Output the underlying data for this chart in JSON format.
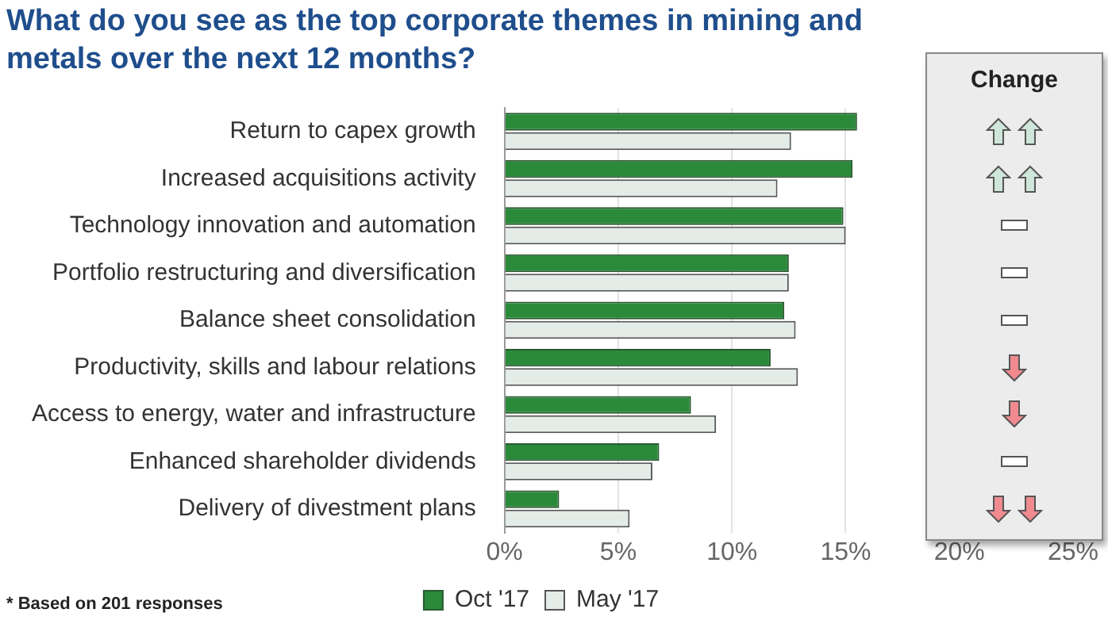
{
  "chart_data": {
    "type": "bar",
    "orientation": "horizontal",
    "title": "What do you see as the top corporate themes in mining and metals over the next 12 months?",
    "categories": [
      "Return to capex growth",
      "Increased acquisitions activity",
      "Technology innovation and automation",
      "Portfolio restructuring and diversification",
      "Balance sheet consolidation",
      "Productivity, skills and labour relations",
      "Access to energy, water and infrastructure",
      "Enhanced shareholder dividends",
      "Delivery of divestment plans"
    ],
    "series": [
      {
        "name": "Oct '17",
        "color": "#2a8a3a",
        "values": [
          15.5,
          15.3,
          14.9,
          12.5,
          12.3,
          11.7,
          8.2,
          6.8,
          2.4
        ]
      },
      {
        "name": "May '17",
        "color": "#e4ece8",
        "values": [
          12.6,
          12.0,
          15.0,
          12.5,
          12.8,
          12.9,
          9.3,
          6.5,
          5.5
        ]
      }
    ],
    "xlim": [
      0,
      25
    ],
    "xticks": [
      {
        "value": 0,
        "label": "0%"
      },
      {
        "value": 5,
        "label": "5%"
      },
      {
        "value": 10,
        "label": "10%"
      },
      {
        "value": 15,
        "label": "15%"
      },
      {
        "value": 20,
        "label": "20%"
      },
      {
        "value": 25,
        "label": "25%"
      }
    ],
    "grid": "x",
    "legend": "bottom",
    "annotations": [
      "Change",
      "* Based on 201 responses"
    ]
  }
}
